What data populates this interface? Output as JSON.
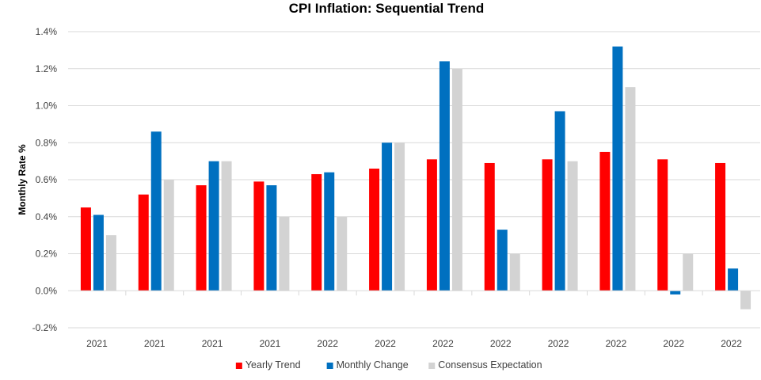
{
  "chart_data": {
    "type": "bar",
    "title": "CPI Inflation: Sequential Trend",
    "xlabel": "",
    "ylabel": "Monthly Rate %",
    "ylim": [
      -0.2,
      1.4
    ],
    "yticks": [
      "-0.2%",
      "0.0%",
      "0.2%",
      "0.4%",
      "0.6%",
      "0.8%",
      "1.0%",
      "1.2%",
      "1.4%"
    ],
    "grid": true,
    "legend_position": "bottom",
    "categories": [
      "2021",
      "2021",
      "2021",
      "2021",
      "2022",
      "2022",
      "2022",
      "2022",
      "2022",
      "2022",
      "2022",
      "2022"
    ],
    "series": [
      {
        "name": "Yearly Trend",
        "color": "#ff0000",
        "values": [
          0.45,
          0.52,
          0.57,
          0.59,
          0.63,
          0.66,
          0.71,
          0.69,
          0.71,
          0.75,
          0.71,
          0.69
        ]
      },
      {
        "name": "Monthly Change",
        "color": "#0070c0",
        "values": [
          0.41,
          0.86,
          0.7,
          0.57,
          0.64,
          0.8,
          1.24,
          0.33,
          0.97,
          1.32,
          -0.02,
          0.12
        ]
      },
      {
        "name": "Consensus Expectation",
        "color": "#d3d3d3",
        "values": [
          0.3,
          0.6,
          0.7,
          0.4,
          0.4,
          0.8,
          1.2,
          0.2,
          0.7,
          1.1,
          0.2,
          -0.1
        ]
      }
    ]
  }
}
